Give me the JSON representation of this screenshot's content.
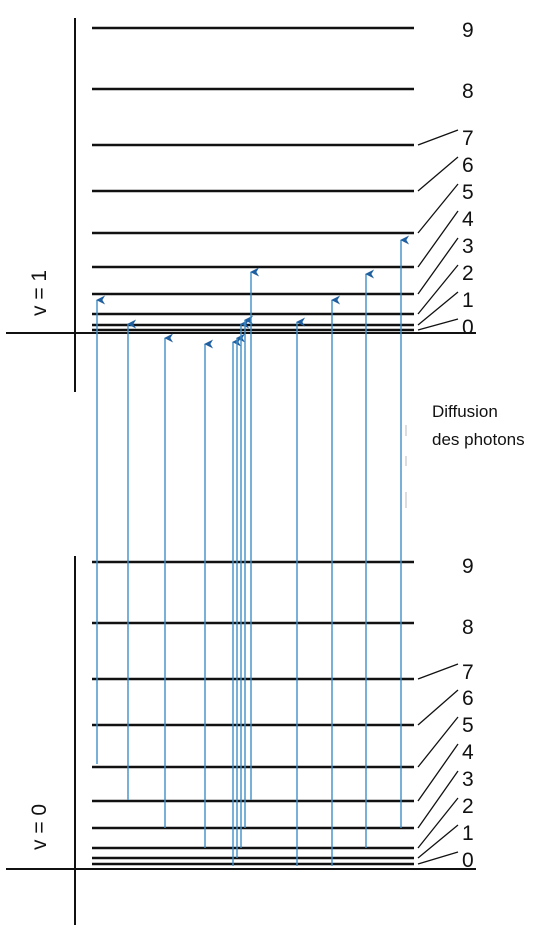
{
  "upper_state": {
    "label": "v = 1",
    "levels": [
      {
        "j": "9"
      },
      {
        "j": "8"
      },
      {
        "j": "7"
      },
      {
        "j": "6"
      },
      {
        "j": "5"
      },
      {
        "j": "4"
      },
      {
        "j": "3"
      },
      {
        "j": "2"
      },
      {
        "j": "1"
      },
      {
        "j": "0"
      }
    ]
  },
  "lower_state": {
    "label": "v = 0",
    "levels": [
      {
        "j": "9"
      },
      {
        "j": "8"
      },
      {
        "j": "7"
      },
      {
        "j": "6"
      },
      {
        "j": "5"
      },
      {
        "j": "4"
      },
      {
        "j": "3"
      },
      {
        "j": "2"
      },
      {
        "j": "1"
      },
      {
        "j": "0"
      }
    ]
  },
  "caption": {
    "line1": "Diffusion",
    "line2": "des photons"
  },
  "colors": {
    "level_line": "#111111",
    "arrow": "#3f8fc7",
    "arrow_head": "#1f5f9f"
  }
}
